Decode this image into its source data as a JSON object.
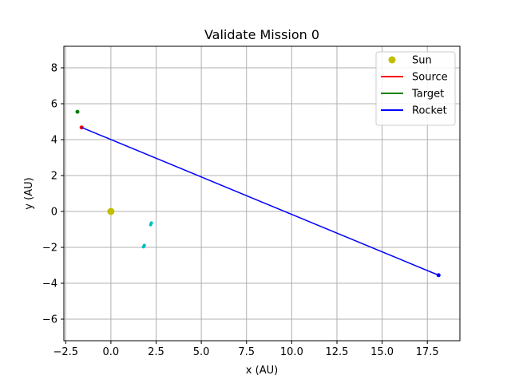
{
  "chart_data": {
    "type": "line",
    "title": "Validate Mission 0",
    "xlabel": "x (AU)",
    "ylabel": "y (AU)",
    "xlim": [
      -2.6,
      19.3
    ],
    "ylim": [
      -7.2,
      9.2
    ],
    "xticks": [
      -2.5,
      0.0,
      2.5,
      5.0,
      7.5,
      10.0,
      12.5,
      15.0,
      17.5
    ],
    "xtick_labels": [
      "−2.5",
      "0.0",
      "2.5",
      "5.0",
      "7.5",
      "10.0",
      "12.5",
      "15.0",
      "17.5"
    ],
    "yticks": [
      -6,
      -4,
      -2,
      0,
      2,
      4,
      6,
      8
    ],
    "ytick_labels": [
      "−6",
      "−4",
      "−2",
      "0",
      "2",
      "4",
      "6",
      "8"
    ],
    "grid": true,
    "legend_position": "top-right",
    "series": [
      {
        "name": "Sun",
        "kind": "marker",
        "color": "#bfbf00",
        "x": [
          0.0
        ],
        "y": [
          0.0
        ]
      },
      {
        "name": "Source",
        "kind": "line",
        "color": "#ff0000",
        "x": [
          -1.62
        ],
        "y": [
          4.68
        ]
      },
      {
        "name": "Target",
        "kind": "line",
        "color": "#008000",
        "x": [
          -1.85
        ],
        "y": [
          5.55
        ]
      },
      {
        "name": "Rocket",
        "kind": "line",
        "color": "#0000ff",
        "x": [
          -1.62,
          18.12
        ],
        "y": [
          4.68,
          -3.55
        ]
      }
    ],
    "extra_points": [
      {
        "color": "#00bfbf",
        "x": [
          2.2,
          2.24
        ],
        "y": [
          -0.74,
          -0.64
        ]
      },
      {
        "color": "#00bfbf",
        "x": [
          1.8,
          1.85
        ],
        "y": [
          -1.97,
          -1.89
        ]
      }
    ]
  }
}
